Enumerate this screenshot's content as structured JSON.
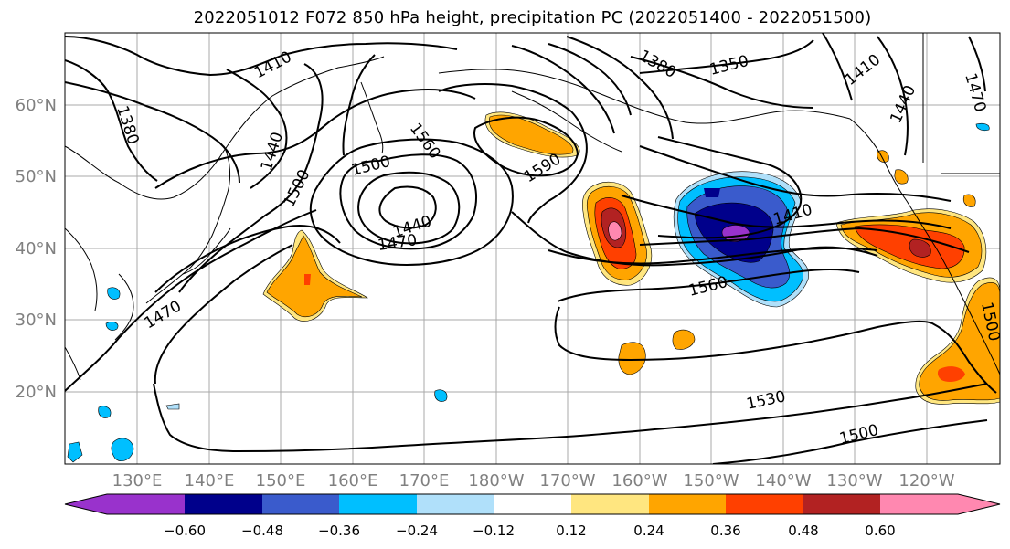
{
  "title": "2022051012 F072 850 hPa height, precipitation PC (2022051400 - 2022051500)",
  "map": {
    "lon_labels": [
      "130°E",
      "140°E",
      "150°E",
      "160°E",
      "170°E",
      "180°W",
      "170°W",
      "160°W",
      "150°W",
      "140°W",
      "130°W",
      "120°W"
    ],
    "lat_labels": [
      "60°N",
      "50°N",
      "40°N",
      "30°N",
      "20°N"
    ]
  },
  "contour_labels": [
    "1410",
    "1380",
    "1440",
    "1500",
    "1560",
    "1500",
    "1590",
    "1440",
    "1470",
    "1410",
    "1560",
    "1470",
    "1530",
    "1500",
    "1350",
    "1380",
    "1410",
    "1440",
    "1470",
    "1500"
  ],
  "colorbar": {
    "ticks": [
      "−0.60",
      "−0.48",
      "−0.36",
      "−0.24",
      "−0.12",
      "0.12",
      "0.24",
      "0.36",
      "0.48",
      "0.60"
    ],
    "colors": [
      "#9932cc",
      "#00008b",
      "#3a5bcc",
      "#00bfff",
      "#b0e0fa",
      "#ffffff",
      "#ffe680",
      "#ffa500",
      "#ff4000",
      "#b22222",
      "#ff88b0"
    ]
  }
}
